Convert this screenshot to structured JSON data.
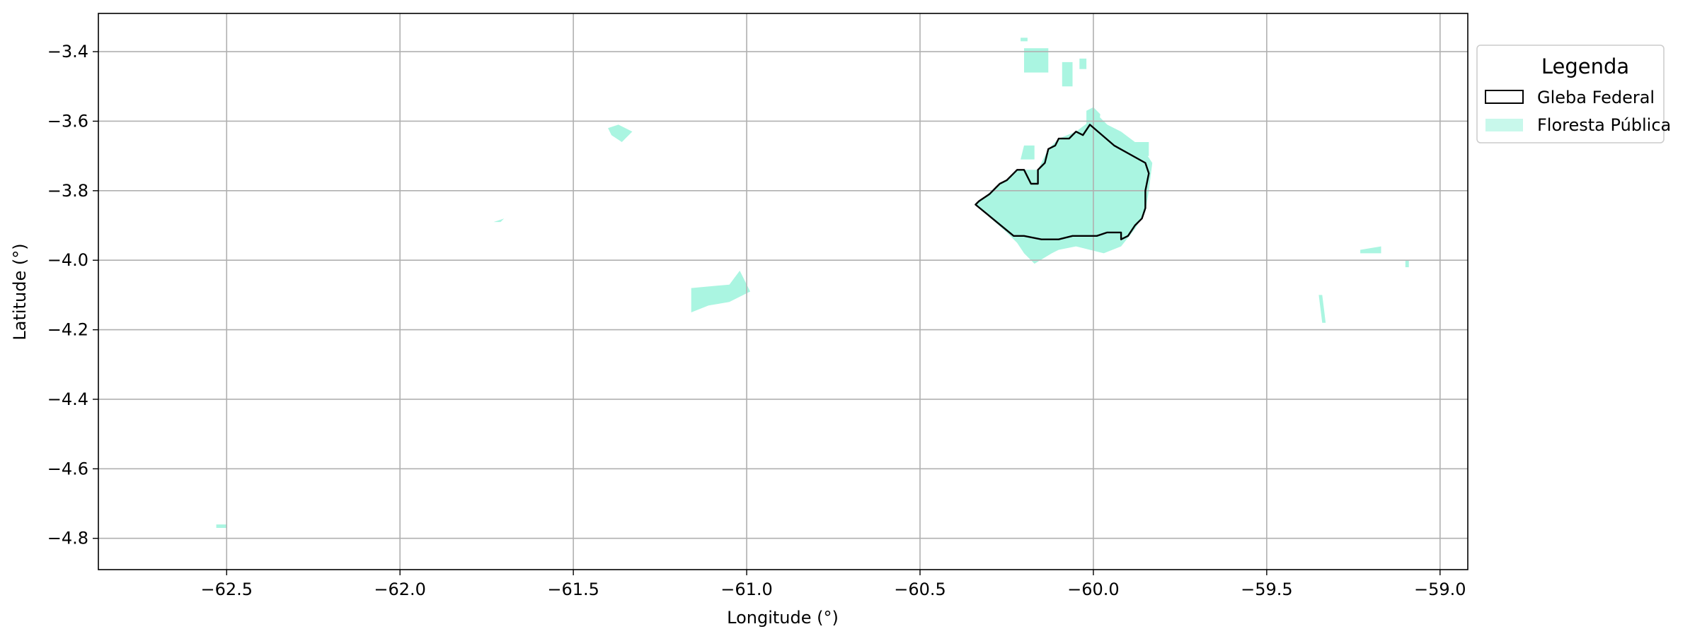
{
  "chart_data": {
    "type": "map",
    "xlabel": "Longitude (°)",
    "ylabel": "Latitude (°)",
    "xlim": [
      -62.87,
      -58.92
    ],
    "ylim": [
      -4.89,
      -3.29
    ],
    "xticks": [
      -62.5,
      -62.0,
      -61.5,
      -61.0,
      -60.5,
      -60.0,
      -59.5,
      -59.0
    ],
    "yticks": [
      -3.4,
      -3.6,
      -3.8,
      -4.0,
      -4.2,
      -4.4,
      -4.6,
      -4.8
    ],
    "grid": true,
    "legend": {
      "title": "Legenda",
      "position": "outside-top-right",
      "entries": [
        {
          "label": "Gleba Federal",
          "style": "outline",
          "color": "#000000"
        },
        {
          "label": "Floresta Pública",
          "style": "fill",
          "color": "#aaf5e1"
        }
      ]
    },
    "colors": {
      "forest": "#aaf5e1",
      "boundary": "#000000",
      "grid": "#b0b0b0"
    },
    "gleba_federal": [
      [
        -60.34,
        -3.84
      ],
      [
        -60.33,
        -3.83
      ],
      [
        -60.3,
        -3.81
      ],
      [
        -60.28,
        -3.79
      ],
      [
        -60.27,
        -3.78
      ],
      [
        -60.25,
        -3.77
      ],
      [
        -60.23,
        -3.75
      ],
      [
        -60.22,
        -3.74
      ],
      [
        -60.2,
        -3.74
      ],
      [
        -60.19,
        -3.76
      ],
      [
        -60.18,
        -3.78
      ],
      [
        -60.16,
        -3.78
      ],
      [
        -60.16,
        -3.74
      ],
      [
        -60.14,
        -3.72
      ],
      [
        -60.13,
        -3.68
      ],
      [
        -60.11,
        -3.67
      ],
      [
        -60.1,
        -3.65
      ],
      [
        -60.07,
        -3.65
      ],
      [
        -60.05,
        -3.63
      ],
      [
        -60.03,
        -3.64
      ],
      [
        -60.01,
        -3.61
      ],
      [
        -59.94,
        -3.67
      ],
      [
        -59.85,
        -3.72
      ],
      [
        -59.84,
        -3.75
      ],
      [
        -59.85,
        -3.8
      ],
      [
        -59.85,
        -3.85
      ],
      [
        -59.86,
        -3.88
      ],
      [
        -59.88,
        -3.9
      ],
      [
        -59.9,
        -3.93
      ],
      [
        -59.92,
        -3.94
      ],
      [
        -59.92,
        -3.92
      ],
      [
        -59.94,
        -3.92
      ],
      [
        -59.96,
        -3.92
      ],
      [
        -59.99,
        -3.93
      ],
      [
        -60.03,
        -3.93
      ],
      [
        -60.06,
        -3.93
      ],
      [
        -60.1,
        -3.94
      ],
      [
        -60.15,
        -3.94
      ],
      [
        -60.2,
        -3.93
      ],
      [
        -60.23,
        -3.93
      ],
      [
        -60.34,
        -3.84
      ]
    ],
    "floresta_publica": [
      [
        [
          -60.34,
          -3.84
        ],
        [
          -60.33,
          -3.83
        ],
        [
          -60.28,
          -3.79
        ],
        [
          -60.25,
          -3.77
        ],
        [
          -60.22,
          -3.74
        ],
        [
          -60.16,
          -3.74
        ],
        [
          -60.13,
          -3.68
        ],
        [
          -60.1,
          -3.65
        ],
        [
          -60.05,
          -3.63
        ],
        [
          -60.01,
          -3.6
        ],
        [
          -59.99,
          -3.58
        ],
        [
          -59.96,
          -3.61
        ],
        [
          -59.92,
          -3.63
        ],
        [
          -59.88,
          -3.66
        ],
        [
          -59.85,
          -3.69
        ],
        [
          -59.83,
          -3.72
        ],
        [
          -59.84,
          -3.8
        ],
        [
          -59.85,
          -3.86
        ],
        [
          -59.88,
          -3.91
        ],
        [
          -59.92,
          -3.96
        ],
        [
          -59.97,
          -3.98
        ],
        [
          -60.01,
          -3.97
        ],
        [
          -60.05,
          -3.96
        ],
        [
          -60.1,
          -3.97
        ],
        [
          -60.12,
          -3.98
        ],
        [
          -60.17,
          -4.01
        ],
        [
          -60.2,
          -3.98
        ],
        [
          -60.22,
          -3.95
        ],
        [
          -60.25,
          -3.92
        ],
        [
          -60.34,
          -3.84
        ]
      ],
      [
        [
          -60.21,
          -3.71
        ],
        [
          -60.17,
          -3.71
        ],
        [
          -60.17,
          -3.67
        ],
        [
          -60.2,
          -3.67
        ]
      ],
      [
        [
          -60.11,
          -3.73
        ],
        [
          -60.04,
          -3.73
        ],
        [
          -60.02,
          -3.69
        ],
        [
          -60.02,
          -3.57
        ],
        [
          -60.0,
          -3.56
        ],
        [
          -59.98,
          -3.58
        ],
        [
          -59.99,
          -3.66
        ],
        [
          -60.04,
          -3.66
        ],
        [
          -60.09,
          -3.67
        ]
      ],
      [
        [
          -60.2,
          -3.46
        ],
        [
          -60.13,
          -3.46
        ],
        [
          -60.13,
          -3.39
        ],
        [
          -60.2,
          -3.39
        ]
      ],
      [
        [
          -60.21,
          -3.37
        ],
        [
          -60.19,
          -3.37
        ],
        [
          -60.19,
          -3.36
        ],
        [
          -60.21,
          -3.36
        ]
      ],
      [
        [
          -60.09,
          -3.5
        ],
        [
          -60.06,
          -3.5
        ],
        [
          -60.06,
          -3.43
        ],
        [
          -60.09,
          -3.43
        ]
      ],
      [
        [
          -60.04,
          -3.45
        ],
        [
          -60.02,
          -3.45
        ],
        [
          -60.02,
          -3.42
        ],
        [
          -60.04,
          -3.42
        ]
      ],
      [
        [
          -59.9,
          -3.7
        ],
        [
          -59.84,
          -3.7
        ],
        [
          -59.84,
          -3.66
        ],
        [
          -59.9,
          -3.66
        ]
      ],
      [
        [
          -61.4,
          -3.62
        ],
        [
          -61.37,
          -3.61
        ],
        [
          -61.33,
          -3.63
        ],
        [
          -61.36,
          -3.66
        ],
        [
          -61.39,
          -3.64
        ]
      ],
      [
        [
          -61.73,
          -3.89
        ],
        [
          -61.7,
          -3.88
        ],
        [
          -61.71,
          -3.89
        ]
      ],
      [
        [
          -61.16,
          -4.08
        ],
        [
          -61.05,
          -4.07
        ],
        [
          -61.02,
          -4.03
        ],
        [
          -60.99,
          -4.09
        ],
        [
          -61.05,
          -4.12
        ],
        [
          -61.11,
          -4.13
        ],
        [
          -61.16,
          -4.15
        ]
      ],
      [
        [
          -59.23,
          -3.97
        ],
        [
          -59.17,
          -3.96
        ],
        [
          -59.17,
          -3.98
        ],
        [
          -59.23,
          -3.98
        ]
      ],
      [
        [
          -59.35,
          -4.1
        ],
        [
          -59.34,
          -4.1
        ],
        [
          -59.33,
          -4.18
        ],
        [
          -59.34,
          -4.18
        ]
      ],
      [
        [
          -59.1,
          -4.0
        ],
        [
          -59.09,
          -4.0
        ],
        [
          -59.09,
          -4.02
        ],
        [
          -59.1,
          -4.02
        ]
      ],
      [
        [
          -62.53,
          -4.76
        ],
        [
          -62.5,
          -4.76
        ],
        [
          -62.5,
          -4.77
        ],
        [
          -62.53,
          -4.77
        ]
      ]
    ]
  }
}
